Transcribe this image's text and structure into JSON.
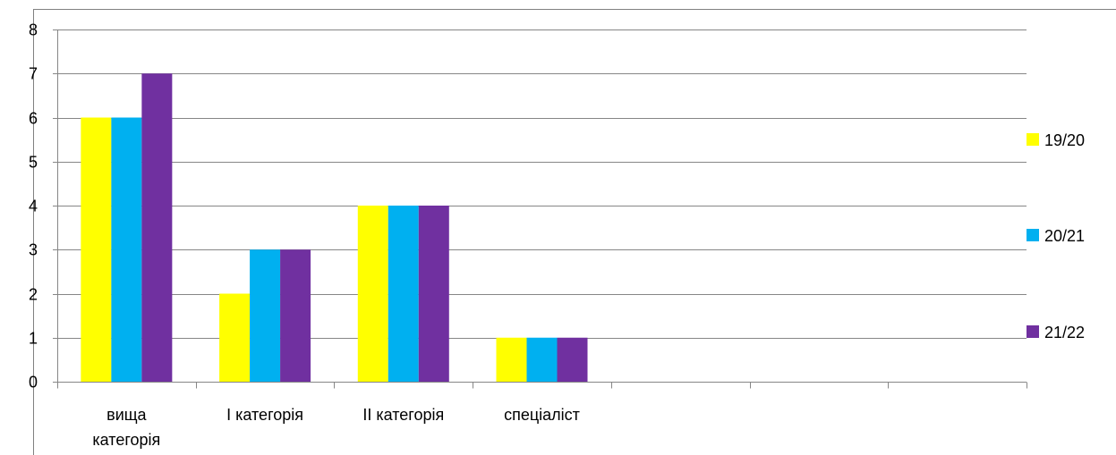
{
  "chart_data": {
    "type": "bar",
    "title": "",
    "xlabel": "",
    "ylabel": "",
    "ylim": [
      0,
      8
    ],
    "y_ticks": [
      0,
      1,
      2,
      3,
      4,
      5,
      6,
      7,
      8
    ],
    "grid": true,
    "legend_position": "right",
    "categories": [
      [
        "вища",
        "категорія"
      ],
      [
        "І категорія"
      ],
      [
        "ІІ категорія"
      ],
      [
        "спеціаліст"
      ],
      [
        ""
      ],
      [
        ""
      ],
      [
        ""
      ]
    ],
    "series": [
      {
        "name": "19/20",
        "color": "#FFFF00",
        "values": [
          6,
          2,
          4,
          1,
          null,
          null,
          null
        ]
      },
      {
        "name": "20/21",
        "color": "#00B0F0",
        "values": [
          6,
          3,
          4,
          1,
          null,
          null,
          null
        ]
      },
      {
        "name": "21/22",
        "color": "#7030A0",
        "values": [
          7,
          3,
          4,
          1,
          null,
          null,
          null
        ]
      }
    ]
  }
}
